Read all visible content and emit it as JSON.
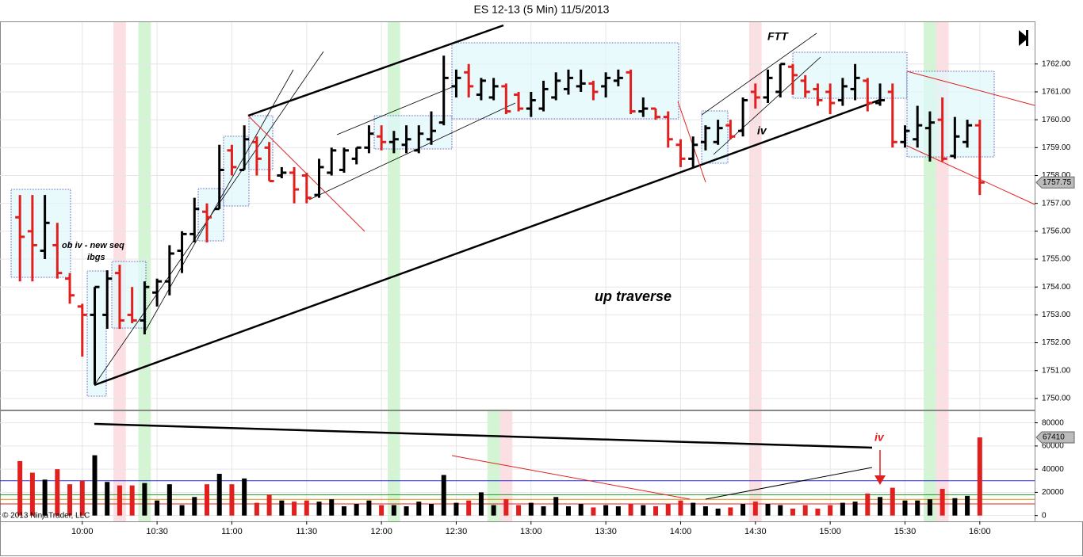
{
  "chart_data": [
    {
      "type": "ohlc",
      "title": "ES 12-13 (5 Min)  11/5/2013",
      "x": [
        575,
        580,
        585,
        590,
        595,
        600,
        605,
        610,
        615,
        620,
        625,
        630,
        635,
        640,
        645,
        650,
        655,
        660,
        665,
        670,
        675,
        680,
        685,
        690,
        695,
        700,
        705,
        710,
        715,
        720,
        725,
        730,
        735,
        740,
        745,
        750,
        755,
        760,
        765,
        770,
        775,
        780,
        785,
        790,
        795,
        800,
        805,
        810,
        815,
        820,
        825,
        830,
        835,
        840,
        845,
        850,
        855,
        860,
        865,
        870,
        875,
        880,
        885,
        890,
        895,
        900,
        905,
        910,
        915,
        920,
        925,
        930,
        935,
        940,
        945,
        950,
        955,
        960
      ],
      "open": [
        1756.5,
        1756,
        1755.3,
        1755.5,
        1754.3,
        1753.3,
        1753,
        1753,
        1754.5,
        1753,
        1752.8,
        1753.8,
        1754.2,
        1755.3,
        1755.9,
        1756.7,
        1756.8,
        1758.9,
        1758.2,
        1759.2,
        1759,
        1758,
        1758.1,
        1758,
        1757.3,
        1758.1,
        1758.2,
        1758.6,
        1759,
        1759.4,
        1759.2,
        1759.1,
        1758.9,
        1759.3,
        1759.9,
        1761.2,
        1761.7,
        1760.9,
        1760.8,
        1761.2,
        1760.9,
        1760.4,
        1760.4,
        1760.8,
        1761.1,
        1761.2,
        1761.3,
        1761.2,
        1761.4,
        1761.7,
        1760.3,
        1760.4,
        1760.1,
        1759.1,
        1758.6,
        1759.2,
        1759.2,
        1759.8,
        1759.6,
        1761,
        1760.8,
        1761,
        1761.9,
        1761.4,
        1761.1,
        1761,
        1760.7,
        1761.1,
        1761.4,
        1760.6,
        1761,
        1759.2,
        1759.3,
        1759.7,
        1760,
        1758.7,
        1759.2,
        1759.8
      ],
      "high": [
        1757.3,
        1757.3,
        1757.3,
        1756.3,
        1754.5,
        1753.4,
        1754,
        1754.6,
        1754.8,
        1754,
        1754.2,
        1754.3,
        1755.5,
        1756,
        1757.2,
        1757,
        1759.1,
        1759.1,
        1759.8,
        1759.4,
        1759.2,
        1758.3,
        1758.3,
        1758.1,
        1758.6,
        1759,
        1759,
        1759,
        1759.8,
        1759.8,
        1759.6,
        1759.8,
        1759.8,
        1760.3,
        1762.3,
        1761.8,
        1762,
        1761.5,
        1761.5,
        1761.3,
        1761,
        1761,
        1761.4,
        1761.7,
        1761.8,
        1761.8,
        1761.4,
        1761.7,
        1761.8,
        1761.8,
        1760.8,
        1760.4,
        1760.3,
        1759.3,
        1759.4,
        1759.8,
        1760,
        1760,
        1760.8,
        1761.3,
        1761.8,
        1762,
        1762,
        1761.6,
        1761.3,
        1761.3,
        1761.5,
        1762,
        1761.5,
        1761.3,
        1761.3,
        1759.8,
        1760.5,
        1760.3,
        1760.8,
        1760.1,
        1760,
        1760
      ],
      "low": [
        1754.2,
        1754.2,
        1755,
        1754.3,
        1753.4,
        1751.5,
        1750.5,
        1752.5,
        1752.5,
        1752.7,
        1752.3,
        1753.3,
        1753.7,
        1754.5,
        1755.6,
        1755.6,
        1756.8,
        1758,
        1758.2,
        1758,
        1757.8,
        1757.9,
        1757,
        1757,
        1757.2,
        1758,
        1758.1,
        1758.4,
        1758.8,
        1758.9,
        1758.8,
        1758.8,
        1758.8,
        1759.1,
        1759.8,
        1760.8,
        1760.8,
        1760.7,
        1760.7,
        1760.2,
        1760.3,
        1760.1,
        1760.3,
        1760.7,
        1760.9,
        1761,
        1760.7,
        1760.8,
        1761.2,
        1760.2,
        1760.1,
        1760,
        1759,
        1758.3,
        1758.3,
        1758.9,
        1759.1,
        1759.3,
        1759.4,
        1760.4,
        1760.6,
        1760.8,
        1760.9,
        1760.8,
        1760.5,
        1760.2,
        1760.5,
        1760.7,
        1760.3,
        1760.5,
        1759,
        1759,
        1759,
        1758.5,
        1758.5,
        1758.6,
        1759,
        1757.3
      ],
      "close": [
        1755.8,
        1755.5,
        1756.3,
        1754.5,
        1753.7,
        1753,
        1754,
        1754.3,
        1752.8,
        1752.8,
        1754,
        1754.2,
        1755.2,
        1755.9,
        1756.8,
        1756.5,
        1758.2,
        1758.3,
        1759.3,
        1758.6,
        1757.8,
        1758.1,
        1757.5,
        1757.2,
        1758.3,
        1758.9,
        1758.9,
        1759,
        1759.5,
        1759.2,
        1759.3,
        1759.3,
        1759.5,
        1759.6,
        1761.5,
        1761.5,
        1761.2,
        1761.4,
        1761.2,
        1760.3,
        1760.4,
        1760.7,
        1761.1,
        1761.4,
        1761.5,
        1761.3,
        1761,
        1761.5,
        1761.5,
        1760.3,
        1760.4,
        1760.1,
        1759.3,
        1758.6,
        1759.1,
        1759.7,
        1759.7,
        1759.4,
        1760.7,
        1760.8,
        1761.5,
        1762,
        1761.6,
        1761,
        1760.7,
        1760.6,
        1761.2,
        1761.5,
        1760.6,
        1760.7,
        1759.2,
        1759.6,
        1759.8,
        1759.9,
        1758.6,
        1759.4,
        1759.8,
        1757.75
      ],
      "up_color": "#000000",
      "down_color": "#e0201f",
      "last_label": "1757.75",
      "ylim": [
        1749.6,
        1763.5
      ],
      "yticks": [
        {
          "value": 1750,
          "label": "1750.00"
        },
        {
          "value": 1751,
          "label": "1751.00"
        },
        {
          "value": 1752,
          "label": "1752.00"
        },
        {
          "value": 1753,
          "label": "1753.00"
        },
        {
          "value": 1754,
          "label": "1754.00"
        },
        {
          "value": 1755,
          "label": "1755.00"
        },
        {
          "value": 1756,
          "label": "1756.00"
        },
        {
          "value": 1757,
          "label": "1757.00"
        },
        {
          "value": 1758,
          "label": "1758.00"
        },
        {
          "value": 1759,
          "label": "1759.00"
        },
        {
          "value": 1760,
          "label": "1760.00"
        },
        {
          "value": 1761,
          "label": "1761.00"
        },
        {
          "value": 1762,
          "label": "1762.00"
        }
      ],
      "xlim": [
        567,
        982
      ],
      "xticks": [
        {
          "value": 600,
          "label": "10:00"
        },
        {
          "value": 630,
          "label": "10:30"
        },
        {
          "value": 660,
          "label": "11:00"
        },
        {
          "value": 690,
          "label": "11:30"
        },
        {
          "value": 720,
          "label": "12:00"
        },
        {
          "value": 750,
          "label": "12:30"
        },
        {
          "value": 780,
          "label": "13:00"
        },
        {
          "value": 810,
          "label": "13:30"
        },
        {
          "value": 840,
          "label": "14:00"
        },
        {
          "value": 870,
          "label": "14:30"
        },
        {
          "value": 900,
          "label": "15:00"
        },
        {
          "value": 930,
          "label": "15:30"
        },
        {
          "value": 960,
          "label": "16:00"
        }
      ],
      "highlights_red": [
        615,
        870,
        945
      ],
      "highlights_green": [
        625,
        725,
        940
      ],
      "annotations": [
        "ob iv - new seq",
        "ibgs",
        "up traverse",
        "FTT",
        "iv"
      ],
      "grid": true
    },
    {
      "type": "bar",
      "values": [
        47000,
        37000,
        31000,
        40000,
        27000,
        30000,
        52000,
        29000,
        26000,
        26000,
        28000,
        13000,
        27000,
        9000,
        16000,
        27000,
        36000,
        27000,
        32000,
        11000,
        18000,
        13000,
        12000,
        13000,
        12000,
        14000,
        8000,
        10000,
        13000,
        9000,
        9000,
        8000,
        12000,
        10000,
        35000,
        11000,
        13000,
        20000,
        9000,
        14000,
        9000,
        11000,
        8000,
        16000,
        8000,
        10000,
        7000,
        9000,
        8000,
        10000,
        9000,
        8000,
        10000,
        13000,
        11000,
        8000,
        6000,
        7000,
        10000,
        12000,
        10000,
        9000,
        6000,
        9000,
        6000,
        9000,
        11000,
        12000,
        19000,
        16000,
        24000,
        13000,
        13000,
        14000,
        23000,
        15000,
        17000,
        67410
      ],
      "last_label": "67410",
      "ylim": [
        -5000,
        90000
      ],
      "yticks": [
        0,
        20000,
        40000,
        60000,
        80000
      ],
      "levels": [
        {
          "value": 30000,
          "color": "#2a2ad0"
        },
        {
          "value": 18000,
          "color": "#1a9a1a"
        },
        {
          "value": 14000,
          "color": "#e08a00"
        },
        {
          "value": 10000,
          "color": "#e0201f"
        }
      ],
      "highlights_red": [
        615,
        770,
        870,
        945
      ],
      "highlights_green": [
        625,
        725,
        765,
        940
      ],
      "annotations": [
        "iv"
      ],
      "copyright": "© 2013 NinjaTrader, LLC"
    }
  ]
}
